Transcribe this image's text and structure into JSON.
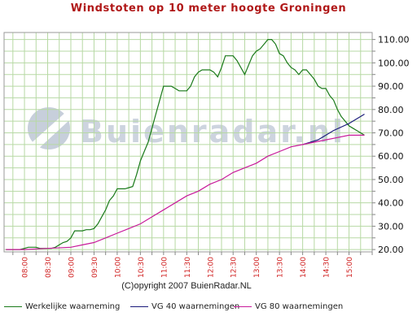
{
  "chart_data": {
    "type": "line",
    "title": "Windstoten op 10 meter hoogte Groningen",
    "copyright": "(C)opyright 2007 BuienRadar.NL",
    "watermark": "Buienradar.nl",
    "x_ticks": [
      "08:00",
      "08:30",
      "09:00",
      "09:30",
      "10:00",
      "10:30",
      "11:00",
      "11:30",
      "12:00",
      "12:30",
      "13:00",
      "13:30",
      "14:00",
      "14:30",
      "15:00"
    ],
    "x_unit": "hour",
    "xlim": [
      7.56,
      15.5
    ],
    "ylim": [
      19,
      113
    ],
    "y_ticks": [
      20,
      30,
      40,
      50,
      60,
      70,
      80,
      90,
      100,
      110
    ],
    "y_tick_labels": [
      "20.00",
      "30.00",
      "40.00",
      "50.00",
      "60.00",
      "70.00",
      "80.00",
      "90.00",
      "100.00",
      "110.00"
    ],
    "grid": true,
    "legend_position": "bottom",
    "series": [
      {
        "name": "Werkelijke waarneming",
        "color": "#1a7a1a",
        "x": [
          7.6,
          7.833,
          7.9,
          8.0,
          8.083,
          8.167,
          8.25,
          8.333,
          8.417,
          8.5,
          8.583,
          8.667,
          8.75,
          8.833,
          8.917,
          9.0,
          9.083,
          9.167,
          9.25,
          9.333,
          9.417,
          9.5,
          9.583,
          9.667,
          9.75,
          9.833,
          9.917,
          10.0,
          10.083,
          10.167,
          10.25,
          10.333,
          10.417,
          10.5,
          10.583,
          10.667,
          10.75,
          10.833,
          10.917,
          11.0,
          11.083,
          11.167,
          11.25,
          11.333,
          11.417,
          11.5,
          11.583,
          11.667,
          11.75,
          11.833,
          11.917,
          12.0,
          12.083,
          12.167,
          12.25,
          12.333,
          12.417,
          12.5,
          12.583,
          12.667,
          12.75,
          12.833,
          12.917,
          13.0,
          13.083,
          13.167,
          13.25,
          13.333,
          13.417,
          13.5,
          13.583,
          13.667,
          13.75,
          13.833,
          13.917,
          14.0,
          14.083,
          14.167,
          14.25,
          14.333,
          14.417,
          14.5,
          14.583,
          14.667,
          14.75,
          14.833,
          14.917,
          15.0,
          15.083,
          15.167,
          15.25,
          15.333
        ],
        "values": [
          20,
          20,
          20,
          20.5,
          21,
          21,
          21,
          20.5,
          20.5,
          20.5,
          20.5,
          21,
          22,
          23,
          23.5,
          25,
          28,
          28,
          28,
          28.5,
          28.5,
          29,
          31,
          34,
          37,
          41,
          43,
          46,
          46,
          46,
          46.5,
          47,
          52,
          58,
          62,
          66,
          72,
          78,
          84,
          90,
          90,
          90,
          89,
          88,
          88,
          88,
          90,
          94,
          96,
          97,
          97,
          97,
          96,
          94,
          98,
          103,
          103,
          103,
          101,
          98,
          95,
          99,
          103,
          105,
          106,
          108,
          110,
          110,
          108,
          104,
          103,
          100,
          98,
          97,
          95,
          97,
          97,
          95,
          93,
          90,
          89,
          89,
          86,
          84,
          80,
          77,
          75,
          73,
          72,
          71,
          70,
          69
        ],
        "values_displayed_x_offset_note": ""
      },
      {
        "name": "VG 40 waarnemingen",
        "color": "#1a1a7a",
        "x": [
          14.0,
          14.333,
          14.667,
          15.0,
          15.333
        ],
        "values": [
          65,
          67,
          71,
          74,
          78
        ]
      },
      {
        "name": "VG 80 waarnemingen",
        "color": "#c81a9a",
        "x": [
          7.6,
          8.0,
          8.5,
          9.0,
          9.25,
          9.5,
          9.75,
          10.0,
          10.25,
          10.5,
          10.75,
          11.0,
          11.25,
          11.5,
          11.75,
          12.0,
          12.25,
          12.5,
          12.75,
          13.0,
          13.25,
          13.5,
          13.75,
          14.0,
          14.25,
          14.5,
          14.75,
          15.0,
          15.333
        ],
        "values": [
          20,
          20,
          20.5,
          21,
          22,
          23,
          25,
          27,
          29,
          31,
          34,
          37,
          40,
          43,
          45,
          48,
          50,
          53,
          55,
          57,
          60,
          62,
          64,
          65,
          66,
          67,
          68,
          69,
          69
        ]
      }
    ]
  }
}
